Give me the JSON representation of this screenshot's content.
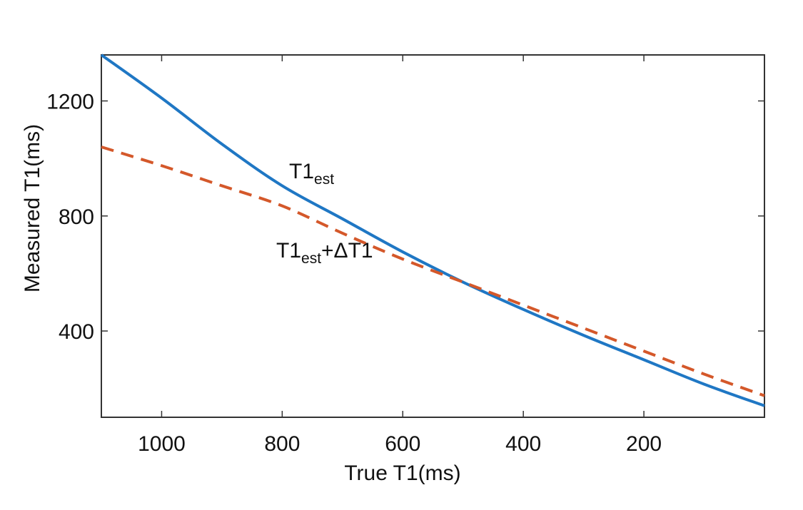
{
  "chart_data": {
    "type": "line",
    "xlabel": "True T1(ms)",
    "ylabel": "Measured T1(ms)",
    "x_reversed": true,
    "xlim": [
      0,
      1100
    ],
    "ylim": [
      100,
      1360
    ],
    "grid": false,
    "x_ticks": [
      1000,
      800,
      600,
      400,
      200
    ],
    "x_tick_labels": [
      "1000",
      "800",
      "600",
      "400",
      "200"
    ],
    "y_ticks": [
      400,
      800,
      1200
    ],
    "y_tick_labels": [
      "400",
      "800",
      "1200"
    ],
    "series": [
      {
        "color": "#1f77c4",
        "style": "solid",
        "x": [
          1100,
          1000,
          900,
          800,
          700,
          600,
          500,
          400,
          300,
          200,
          100,
          0
        ],
        "y": [
          1360,
          1210,
          1050,
          905,
          790,
          675,
          570,
          475,
          385,
          300,
          215,
          140
        ]
      },
      {
        "color": "#d4582a",
        "style": "dashed",
        "x": [
          1100,
          1000,
          900,
          800,
          700,
          600,
          500,
          400,
          300,
          200,
          100,
          0
        ],
        "y": [
          1040,
          975,
          905,
          835,
          740,
          650,
          570,
          490,
          410,
          330,
          250,
          175
        ]
      }
    ],
    "annotations": [
      {
        "base": "T1",
        "sub": "est",
        "suffix": ""
      },
      {
        "base": "T1",
        "sub": "est",
        "suffix": "+ΔT1"
      }
    ]
  }
}
